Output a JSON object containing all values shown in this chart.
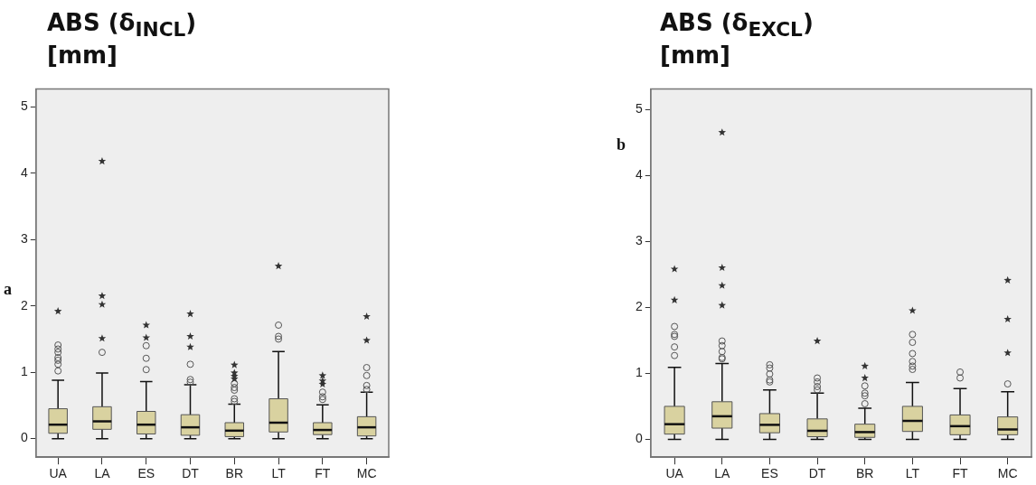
{
  "chart_data": [
    {
      "type": "box",
      "title": "ABS (δ$_{INCL}$)",
      "subtitle": "[mm]",
      "annotations": [
        "a"
      ],
      "categories": [
        "UA",
        "LA",
        "ES",
        "DT",
        "BR",
        "LT",
        "FT",
        "MC"
      ],
      "ylim": [
        -0.28,
        5.27
      ],
      "yticks": [
        0,
        1,
        2,
        3,
        4,
        5
      ],
      "grid": false,
      "legend": false,
      "series": [
        {
          "color": "#d9d2a0",
          "boxes": [
            {
              "low": 0,
              "q1": 0.08,
              "median": 0.21,
              "q3": 0.45,
              "high": 0.88,
              "outliers": [
                1.02,
                1.12,
                1.18,
                1.22,
                1.3,
                1.35,
                1.41
              ]
            },
            {
              "low": 0,
              "q1": 0.14,
              "median": 0.26,
              "q3": 0.48,
              "high": 0.99,
              "outliers": [
                1.3
              ]
            },
            {
              "low": 0,
              "q1": 0.07,
              "median": 0.21,
              "q3": 0.41,
              "high": 0.86,
              "outliers": [
                1.04,
                1.21,
                1.4
              ]
            },
            {
              "low": 0,
              "q1": 0.05,
              "median": 0.17,
              "q3": 0.36,
              "high": 0.81,
              "outliers": [
                0.85,
                0.89,
                1.12
              ]
            },
            {
              "low": 0,
              "q1": 0.03,
              "median": 0.12,
              "q3": 0.24,
              "high": 0.52,
              "outliers": [
                0.56,
                0.6,
                0.73,
                0.77,
                0.83
              ]
            },
            {
              "low": 0,
              "q1": 0.1,
              "median": 0.24,
              "q3": 0.6,
              "high": 1.31,
              "outliers": [
                1.5,
                1.54,
                1.71
              ]
            },
            {
              "low": 0,
              "q1": 0.06,
              "median": 0.13,
              "q3": 0.24,
              "high": 0.51,
              "outliers": [
                0.59,
                0.63,
                0.7
              ]
            },
            {
              "low": 0,
              "q1": 0.04,
              "median": 0.17,
              "q3": 0.33,
              "high": 0.7,
              "outliers": [
                0.74,
                0.8,
                0.95,
                1.07
              ]
            }
          ]
        },
        {
          "type": "scatter",
          "color": "#333333",
          "marker": "star",
          "x": [
            "UA",
            "LA",
            "LA",
            "LA",
            "LA",
            "ES",
            "ES",
            "DT",
            "DT",
            "DT",
            "BR",
            "BR",
            "BR",
            "BR",
            "LT",
            "FT",
            "FT",
            "FT",
            "MC",
            "MC"
          ],
          "values": [
            1.92,
            1.51,
            2.02,
            2.15,
            4.18,
            1.52,
            1.71,
            1.38,
            1.54,
            1.88,
            0.9,
            0.94,
            0.99,
            1.11,
            2.6,
            0.82,
            0.87,
            0.95,
            1.48,
            1.84
          ]
        }
      ]
    },
    {
      "type": "box",
      "title": "ABS (δ$_{EXCL}$)",
      "subtitle": "[mm]",
      "annotations": [
        "b"
      ],
      "categories": [
        "UA",
        "LA",
        "ES",
        "DT",
        "BR",
        "LT",
        "FT",
        "MC"
      ],
      "ylim": [
        -0.27,
        5.31
      ],
      "yticks": [
        0,
        1,
        2,
        3,
        4,
        5
      ],
      "grid": false,
      "legend": false,
      "series": [
        {
          "color": "#d9d2a0",
          "boxes": [
            {
              "low": 0,
              "q1": 0.08,
              "median": 0.23,
              "q3": 0.5,
              "high": 1.09,
              "outliers": [
                1.27,
                1.4,
                1.56,
                1.59,
                1.71
              ]
            },
            {
              "low": 0,
              "q1": 0.17,
              "median": 0.35,
              "q3": 0.57,
              "high": 1.15,
              "outliers": [
                1.22,
                1.24,
                1.33,
                1.42,
                1.49
              ]
            },
            {
              "low": 0,
              "q1": 0.1,
              "median": 0.22,
              "q3": 0.39,
              "high": 0.75,
              "outliers": [
                0.87,
                0.9,
                0.99,
                1.08,
                1.13
              ]
            },
            {
              "low": 0,
              "q1": 0.04,
              "median": 0.13,
              "q3": 0.31,
              "high": 0.7,
              "outliers": [
                0.75,
                0.8,
                0.87,
                0.93
              ]
            },
            {
              "low": 0,
              "q1": 0.03,
              "median": 0.11,
              "q3": 0.23,
              "high": 0.47,
              "outliers": [
                0.54,
                0.66,
                0.7,
                0.81
              ]
            },
            {
              "low": 0,
              "q1": 0.12,
              "median": 0.28,
              "q3": 0.5,
              "high": 0.86,
              "outliers": [
                1.06,
                1.11,
                1.18,
                1.3,
                1.47,
                1.59
              ]
            },
            {
              "low": 0,
              "q1": 0.07,
              "median": 0.2,
              "q3": 0.37,
              "high": 0.77,
              "outliers": [
                0.93,
                1.02
              ]
            },
            {
              "low": 0,
              "q1": 0.07,
              "median": 0.15,
              "q3": 0.34,
              "high": 0.72,
              "outliers": [
                0.84
              ]
            }
          ]
        },
        {
          "type": "scatter",
          "color": "#333333",
          "marker": "star",
          "x": [
            "UA",
            "UA",
            "LA",
            "LA",
            "LA",
            "LA",
            "DT",
            "BR",
            "BR",
            "LT",
            "MC",
            "MC",
            "MC"
          ],
          "values": [
            2.11,
            2.58,
            2.03,
            2.33,
            2.6,
            4.65,
            1.49,
            0.93,
            1.11,
            1.95,
            1.31,
            1.82,
            2.41
          ]
        }
      ]
    }
  ]
}
